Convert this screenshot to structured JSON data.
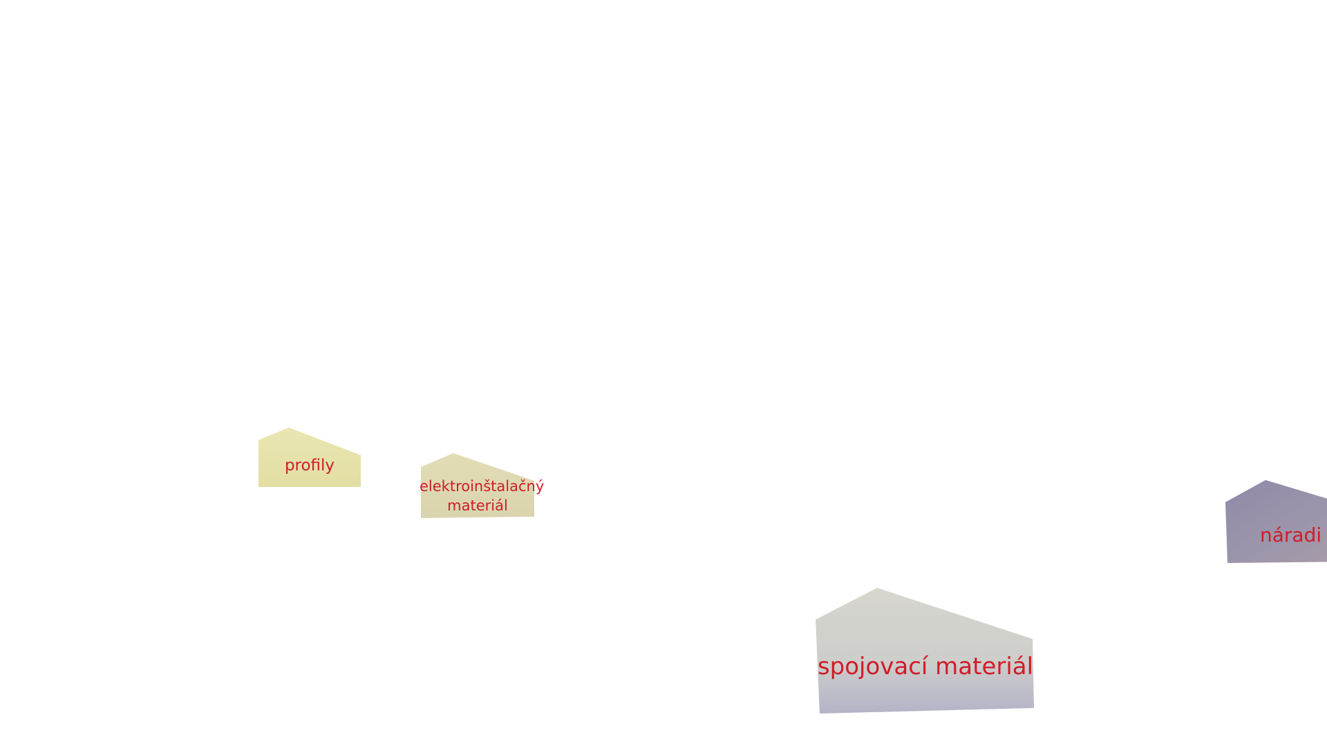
{
  "signs": {
    "profily": {
      "label": "profily",
      "color": "#e6e3a8"
    },
    "elektro": {
      "line1": "elektroinštalačný",
      "line2": "materiál",
      "color": "#dfdab4"
    },
    "spojovaci": {
      "label": "spojovací materiál",
      "color_top": "#d4d4cb",
      "color_bottom": "#b7b7c8"
    },
    "naradie": {
      "label": "náradi",
      "color": "#9a95ad"
    }
  },
  "colors": {
    "text": "#d01c28",
    "background": "#ffffff"
  }
}
